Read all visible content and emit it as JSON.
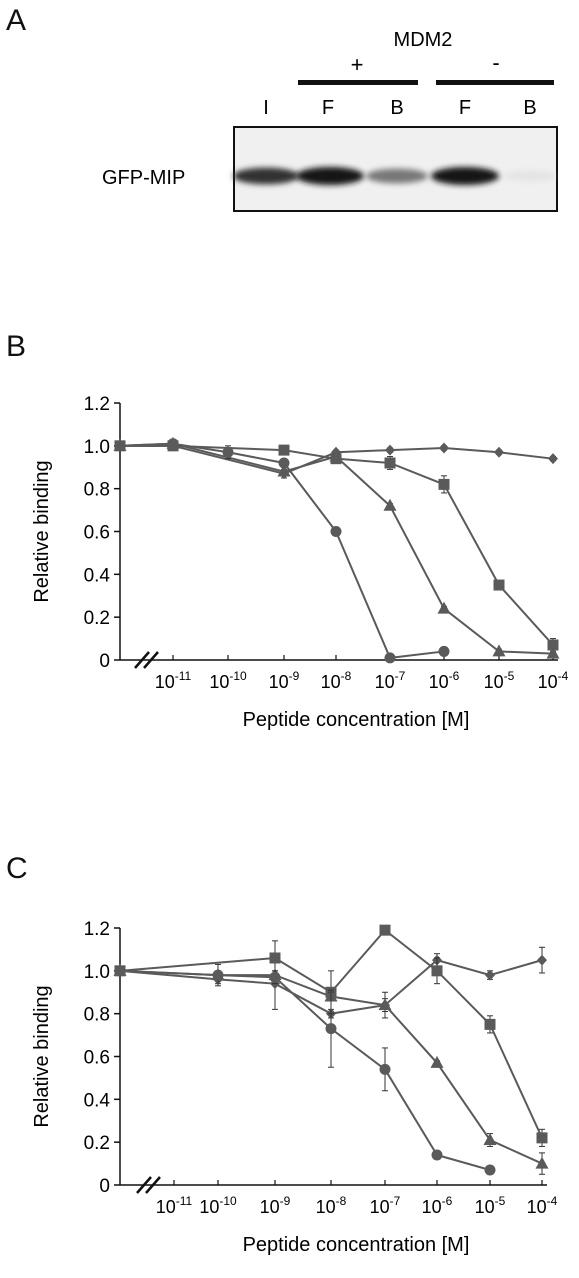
{
  "panelA": {
    "letter": "A",
    "header": "MDM2",
    "plus_label": "+",
    "minus_label": "-",
    "lanes": [
      "I",
      "F",
      "B",
      "F",
      "B"
    ],
    "row_label": "GFP-MIP",
    "band_intensities": [
      0.85,
      1.0,
      0.6,
      1.0,
      0.08
    ]
  },
  "panelB": {
    "letter": "B"
  },
  "panelC": {
    "letter": "C"
  },
  "chart_data": [
    {
      "type": "line",
      "panel": "B",
      "xlabel": "Peptide concentration [M]",
      "ylabel": "Relative binding",
      "ylim": [
        0,
        1.2
      ],
      "y_ticks": [
        "0",
        "0.2",
        "0.4",
        "0.6",
        "0.8",
        "1.0",
        "1.2"
      ],
      "x_categories": [
        "0",
        "1e-11",
        "1e-10",
        "1e-9",
        "1e-8",
        "1e-7",
        "1e-6",
        "1e-5",
        "1e-4"
      ],
      "x_tick_exponents": [
        "-11",
        "-10",
        "-9",
        "-8",
        "-7",
        "-6",
        "-5",
        "-4"
      ],
      "axis_break": true,
      "series": [
        {
          "marker": "diamond",
          "values": [
            1.0,
            1.0,
            null,
            0.87,
            0.97,
            0.98,
            0.99,
            0.97,
            0.94
          ],
          "errors": [
            0,
            0.02,
            0,
            0.02,
            0.01,
            0.01,
            0.01,
            0.01,
            0.01
          ]
        },
        {
          "marker": "square",
          "values": [
            1.0,
            1.0,
            null,
            0.98,
            0.94,
            0.92,
            0.82,
            0.35,
            0.07
          ],
          "errors": [
            0,
            0.01,
            0,
            0.02,
            0.02,
            0.03,
            0.04,
            0.02,
            0.03
          ]
        },
        {
          "marker": "triangle",
          "values": [
            1.0,
            1.01,
            null,
            0.88,
            0.95,
            0.72,
            0.24,
            0.04,
            0.03
          ],
          "errors": [
            0,
            0.01,
            0,
            0.01,
            0.01,
            0.01,
            0.01,
            0.01,
            0.01
          ]
        },
        {
          "marker": "circle",
          "values": [
            1.0,
            1.01,
            0.97,
            0.92,
            0.6,
            0.01,
            0.04,
            null,
            null
          ],
          "errors": [
            0,
            0.02,
            0.03,
            0.01,
            0.01,
            0,
            0,
            0,
            0
          ]
        }
      ]
    },
    {
      "type": "line",
      "panel": "C",
      "xlabel": "Peptide concentration [M]",
      "ylabel": "Relative binding",
      "ylim": [
        0,
        1.2
      ],
      "y_ticks": [
        "0",
        "0.2",
        "0.4",
        "0.6",
        "0.8",
        "1.0",
        "1.2"
      ],
      "x_categories": [
        "0",
        "1e-11",
        "1e-10",
        "1e-9",
        "1e-8",
        "1e-7",
        "1e-6",
        "1e-5",
        "1e-4"
      ],
      "x_tick_exponents": [
        "-11",
        "-10",
        "-9",
        "-8",
        "-7",
        "-6",
        "-5",
        "-4"
      ],
      "axis_break": true,
      "series": [
        {
          "marker": "diamond",
          "values": [
            1.0,
            null,
            0.96,
            0.94,
            0.8,
            0.84,
            1.05,
            0.98,
            1.05
          ],
          "errors": [
            0,
            0,
            0.02,
            0.12,
            0.02,
            0.03,
            0.03,
            0.02,
            0.06
          ]
        },
        {
          "marker": "square",
          "values": [
            1.0,
            null,
            null,
            1.06,
            0.9,
            1.19,
            1.0,
            0.75,
            0.22
          ],
          "errors": [
            0,
            0,
            0,
            0.08,
            0.1,
            0.02,
            0.06,
            0.04,
            0.04
          ]
        },
        {
          "marker": "triangle",
          "values": [
            1.0,
            null,
            0.98,
            0.98,
            0.88,
            0.84,
            0.57,
            0.21,
            0.1
          ],
          "errors": [
            0,
            0,
            0.01,
            0.02,
            0.02,
            0.06,
            0.01,
            0.03,
            0.05
          ]
        },
        {
          "marker": "circle",
          "values": [
            1.0,
            null,
            0.98,
            0.97,
            0.73,
            0.54,
            0.14,
            0.07,
            null
          ],
          "errors": [
            0,
            0,
            0.05,
            0.03,
            0.18,
            0.1,
            0.01,
            0.01,
            0
          ]
        }
      ]
    }
  ]
}
